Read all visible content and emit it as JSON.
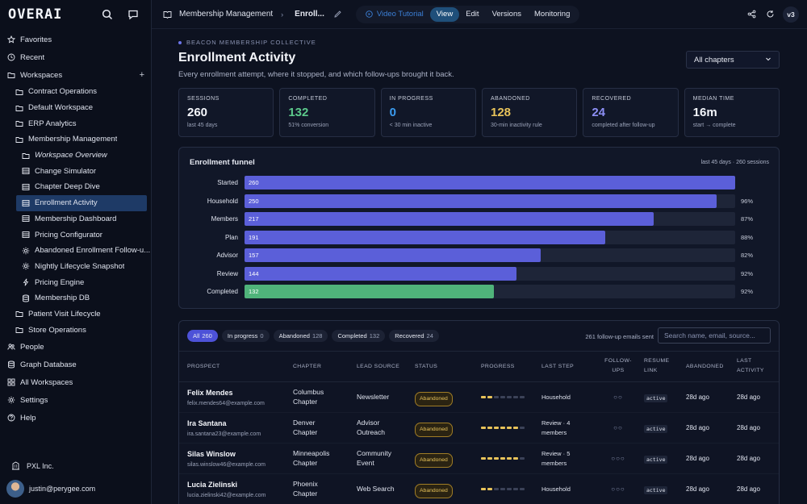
{
  "app": {
    "logo": "OVERAI"
  },
  "sidebar": {
    "favorites": "Favorites",
    "recent": "Recent",
    "workspaces": "Workspaces",
    "plus": "+",
    "items": [
      {
        "label": "Contract Operations",
        "level": 1,
        "icon": "folder-icon"
      },
      {
        "label": "Default Workspace",
        "level": 1,
        "icon": "folder-icon"
      },
      {
        "label": "ERP Analytics",
        "level": 1,
        "icon": "folder-icon"
      },
      {
        "label": "Membership Management",
        "level": 1,
        "icon": "folder-icon"
      },
      {
        "label": "Workspace Overview",
        "level": 2,
        "icon": "folder-icon",
        "italic": true
      },
      {
        "label": "Change Simulator",
        "level": 2,
        "icon": "table-icon"
      },
      {
        "label": "Chapter Deep Dive",
        "level": 2,
        "icon": "table-icon"
      },
      {
        "label": "Enrollment Activity",
        "level": 2,
        "icon": "table-icon",
        "active": true
      },
      {
        "label": "Membership Dashboard",
        "level": 2,
        "icon": "table-icon"
      },
      {
        "label": "Pricing Configurator",
        "level": 2,
        "icon": "table-icon"
      },
      {
        "label": "Abandoned Enrollment Follow-u...",
        "level": 2,
        "icon": "gear-icon"
      },
      {
        "label": "Nightly Lifecycle Snapshot",
        "level": 2,
        "icon": "gear-icon"
      },
      {
        "label": "Pricing Engine",
        "level": 2,
        "icon": "bolt-icon"
      },
      {
        "label": "Membership DB",
        "level": 2,
        "icon": "database-icon"
      },
      {
        "label": "Patient Visit Lifecycle",
        "level": 1,
        "icon": "folder-icon"
      },
      {
        "label": "Store Operations",
        "level": 1,
        "icon": "folder-icon"
      }
    ],
    "bottom": [
      {
        "label": "People",
        "icon": "people-icon"
      },
      {
        "label": "Graph Database",
        "icon": "database-icon"
      },
      {
        "label": "All Workspaces",
        "icon": "grid-icon"
      },
      {
        "label": "Settings",
        "icon": "gear-icon"
      },
      {
        "label": "Help",
        "icon": "help-icon"
      }
    ],
    "org": "PXL Inc.",
    "user": "justin@perygee.com"
  },
  "topbar": {
    "breadcrumb": "Membership Management",
    "current": "Enroll...",
    "tutorial": "Video Tutorial",
    "tabs": [
      "View",
      "Edit",
      "Versions",
      "Monitoring"
    ],
    "active_tab": "View",
    "version": "v3"
  },
  "header": {
    "eyebrow": "BEACON MEMBERSHIP COLLECTIVE",
    "title": "Enrollment Activity",
    "subtitle": "Every enrollment attempt, where it stopped, and which follow-ups brought it back.",
    "chapter_select": "All chapters"
  },
  "stats": [
    {
      "label": "SESSIONS",
      "value": "260",
      "sub": "last 45 days",
      "color": "#f4f6fb"
    },
    {
      "label": "COMPLETED",
      "value": "132",
      "sub": "51% conversion",
      "color": "#5cc98b"
    },
    {
      "label": "IN PROGRESS",
      "value": "0",
      "sub": "< 30 min inactive",
      "color": "#3b9cf0"
    },
    {
      "label": "ABANDONED",
      "value": "128",
      "sub": "30-min inactivity rule",
      "color": "#e8c35a"
    },
    {
      "label": "RECOVERED",
      "value": "24",
      "sub": "completed after follow-up",
      "color": "#8d8ff5"
    },
    {
      "label": "MEDIAN TIME",
      "value": "16m",
      "sub": "start → complete",
      "color": "#f4f6fb"
    }
  ],
  "funnel": {
    "title": "Enrollment funnel",
    "meta": "last 45 days · 260 sessions",
    "max": 260,
    "steps": [
      {
        "label": "Started",
        "value": 260,
        "pct": ""
      },
      {
        "label": "Household",
        "value": 250,
        "pct": "96%"
      },
      {
        "label": "Members",
        "value": 217,
        "pct": "87%"
      },
      {
        "label": "Plan",
        "value": 191,
        "pct": "88%"
      },
      {
        "label": "Advisor",
        "value": 157,
        "pct": "82%"
      },
      {
        "label": "Review",
        "value": 144,
        "pct": "92%"
      },
      {
        "label": "Completed",
        "value": 132,
        "pct": "92%"
      }
    ]
  },
  "table": {
    "filters": [
      {
        "label": "All",
        "count": "260",
        "active": true
      },
      {
        "label": "In progress",
        "count": "0"
      },
      {
        "label": "Abandoned",
        "count": "128"
      },
      {
        "label": "Completed",
        "count": "132"
      },
      {
        "label": "Recovered",
        "count": "24"
      }
    ],
    "followups_sent": "261 follow-up emails sent",
    "search_placeholder": "Search name, email, source...",
    "headers": {
      "prospect": "PROSPECT",
      "chapter": "CHAPTER",
      "lead_source": "LEAD SOURCE",
      "status": "STATUS",
      "progress": "PROGRESS",
      "last_step": "LAST STEP",
      "followups_1": "FOLLOW-",
      "followups_2": "UPS",
      "resume_1": "RESUME",
      "resume_2": "LINK",
      "abandoned": "ABANDONED",
      "last_activity_1": "LAST",
      "last_activity_2": "ACTIVITY"
    },
    "rows": [
      {
        "name": "Felix Mendes",
        "email": "felix.mendes64@example.com",
        "chapter_1": "Columbus",
        "chapter_2": "Chapter",
        "source_1": "Newsletter",
        "source_2": "",
        "status": "Abandoned",
        "progress": 2,
        "last_step_1": "Household",
        "last_step_2": "",
        "followups": "○○",
        "resume": "active",
        "abandoned": "28d ago",
        "last_activity": "28d ago"
      },
      {
        "name": "Ira Santana",
        "email": "ira.santana23@example.com",
        "chapter_1": "Denver",
        "chapter_2": "Chapter",
        "source_1": "Advisor",
        "source_2": "Outreach",
        "status": "Abandoned",
        "progress": 6,
        "last_step_1": "Review · 4",
        "last_step_2": "members",
        "followups": "○○",
        "resume": "active",
        "abandoned": "28d ago",
        "last_activity": "28d ago"
      },
      {
        "name": "Silas Winslow",
        "email": "silas.winslow46@example.com",
        "chapter_1": "Minneapolis",
        "chapter_2": "Chapter",
        "source_1": "Community",
        "source_2": "Event",
        "status": "Abandoned",
        "progress": 6,
        "last_step_1": "Review · 5",
        "last_step_2": "members",
        "followups": "○○○",
        "resume": "active",
        "abandoned": "28d ago",
        "last_activity": "28d ago"
      },
      {
        "name": "Lucia Zielinski",
        "email": "lucia.zielinski42@example.com",
        "chapter_1": "Phoenix",
        "chapter_2": "Chapter",
        "source_1": "Web Search",
        "source_2": "",
        "status": "Abandoned",
        "progress": 2,
        "last_step_1": "Household",
        "last_step_2": "",
        "followups": "○○○",
        "resume": "active",
        "abandoned": "28d ago",
        "last_activity": "28d ago"
      }
    ],
    "progress_total": 7
  }
}
